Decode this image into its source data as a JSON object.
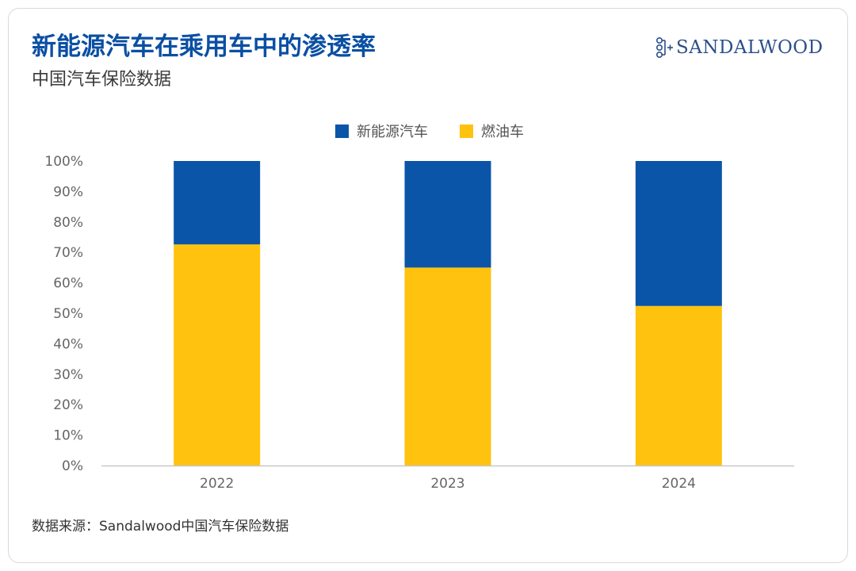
{
  "header": {
    "title": "新能源汽车在乘用车中的渗透率",
    "subtitle": "中国汽车保险数据"
  },
  "logo": {
    "text": "SANDALWOOD"
  },
  "footer": {
    "source": "数据来源：Sandalwood中国汽车保险数据"
  },
  "colors": {
    "nev": "#0a55a8",
    "fuel": "#ffc20e",
    "title": "#0a4fa3"
  },
  "chart_data": {
    "type": "bar",
    "stacked": true,
    "percent": true,
    "categories": [
      "2022",
      "2023",
      "2024"
    ],
    "series": [
      {
        "name": "燃油车",
        "color": "#ffc20e",
        "values": [
          72.6,
          65.0,
          52.4
        ]
      },
      {
        "name": "新能源汽车",
        "color": "#0a55a8",
        "values": [
          27.4,
          35.0,
          47.6
        ]
      }
    ],
    "legend": {
      "position": "top-center",
      "entries": [
        {
          "label": "新能源汽车",
          "color": "#0a55a8"
        },
        {
          "label": "燃油车",
          "color": "#ffc20e"
        }
      ]
    },
    "yaxis": {
      "ticks": [
        "0%",
        "10%",
        "20%",
        "30%",
        "40%",
        "50%",
        "60%",
        "70%",
        "80%",
        "90%",
        "100%"
      ],
      "ylim": [
        0,
        100
      ]
    },
    "grid": false
  }
}
